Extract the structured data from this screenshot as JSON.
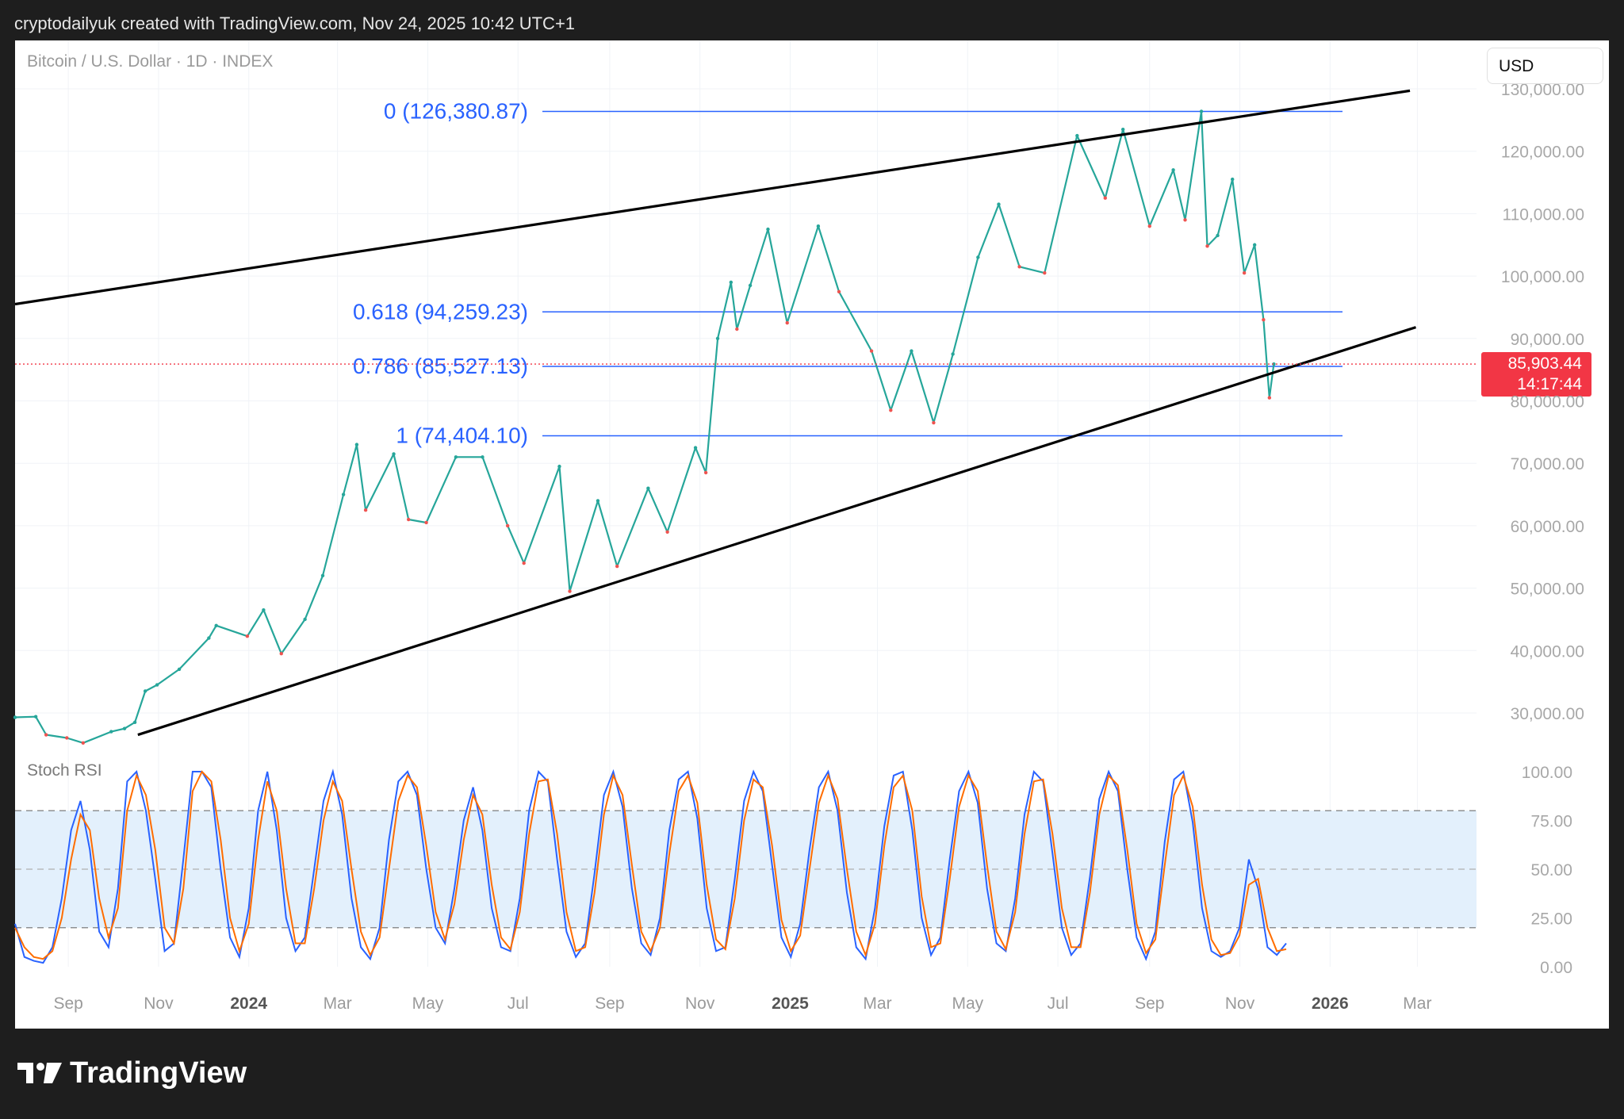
{
  "header": {
    "caption": "cryptodailyuk created with TradingView.com, Nov 24, 2025 10:42 UTC+1"
  },
  "chart": {
    "symbol": "Bitcoin / U.S. Dollar · 1D · INDEX",
    "currency": "USD",
    "price_label": "85,903.44",
    "timer_label": "14:17:44",
    "indicator_label": "Stoch RSI"
  },
  "branding": {
    "name": "TradingView"
  },
  "colors": {
    "up": "#26a69a",
    "down": "#ef5350",
    "fib": "#2962ff",
    "trendline": "#000000",
    "price_line": "#f23645",
    "k_line": "#2962ff",
    "d_line": "#ff6d00",
    "band_fill": "#e3f0fc"
  },
  "chart_data": [
    {
      "type": "line",
      "title": "Bitcoin / U.S. Dollar · 1D · INDEX",
      "x_axis_ticks": [
        "Sep",
        "Nov",
        "2024",
        "Mar",
        "May",
        "Jul",
        "Sep",
        "Nov",
        "2025",
        "Mar",
        "May",
        "Jul",
        "Sep",
        "Nov",
        "2026",
        "Mar"
      ],
      "y_axis_ticks": [
        "130,000.00",
        "120,000.00",
        "110,000.00",
        "100,000.00",
        "90,000.00",
        "80,000.00",
        "70,000.00",
        "60,000.00",
        "50,000.00",
        "40,000.00",
        "30,000.00"
      ],
      "ylim": [
        22000,
        133000
      ],
      "xlim": [
        "2023-07-27",
        "2026-04-10"
      ],
      "series": [
        {
          "values": [
            [
              "2023-07-27",
              29300
            ],
            [
              "2023-08-10",
              29400
            ],
            [
              "2023-08-17",
              26500
            ],
            [
              "2023-08-31",
              26000
            ],
            [
              "2023-09-11",
              25200
            ],
            [
              "2023-09-30",
              27000
            ],
            [
              "2023-10-09",
              27500
            ],
            [
              "2023-10-16",
              28500
            ],
            [
              "2023-10-23",
              33500
            ],
            [
              "2023-10-31",
              34500
            ],
            [
              "2023-11-15",
              37000
            ],
            [
              "2023-12-05",
              42000
            ],
            [
              "2023-12-10",
              44000
            ],
            [
              "2023-12-31",
              42300
            ],
            [
              "2024-01-11",
              46500
            ],
            [
              "2024-01-23",
              39500
            ],
            [
              "2024-02-08",
              45000
            ],
            [
              "2024-02-20",
              52000
            ],
            [
              "2024-03-05",
              65000
            ],
            [
              "2024-03-14",
              73000
            ],
            [
              "2024-03-20",
              62500
            ],
            [
              "2024-04-08",
              71500
            ],
            [
              "2024-04-18",
              61000
            ],
            [
              "2024-04-30",
              60500
            ],
            [
              "2024-05-20",
              71000
            ],
            [
              "2024-06-07",
              71000
            ],
            [
              "2024-06-24",
              60000
            ],
            [
              "2024-07-05",
              54000
            ],
            [
              "2024-07-29",
              69500
            ],
            [
              "2024-08-05",
              49500
            ],
            [
              "2024-08-24",
              64000
            ],
            [
              "2024-09-06",
              53500
            ],
            [
              "2024-09-27",
              66000
            ],
            [
              "2024-10-10",
              59000
            ],
            [
              "2024-10-29",
              72500
            ],
            [
              "2024-11-05",
              68500
            ],
            [
              "2024-11-13",
              90000
            ],
            [
              "2024-11-22",
              99000
            ],
            [
              "2024-11-26",
              91500
            ],
            [
              "2024-12-05",
              98500
            ],
            [
              "2024-12-17",
              107500
            ],
            [
              "2024-12-30",
              92500
            ],
            [
              "2025-01-20",
              108000
            ],
            [
              "2025-02-03",
              97500
            ],
            [
              "2025-02-25",
              88000
            ],
            [
              "2025-03-10",
              78500
            ],
            [
              "2025-03-24",
              88000
            ],
            [
              "2025-04-08",
              76500
            ],
            [
              "2025-04-21",
              87500
            ],
            [
              "2025-05-08",
              103000
            ],
            [
              "2025-05-22",
              111500
            ],
            [
              "2025-06-05",
              101500
            ],
            [
              "2025-06-22",
              100500
            ],
            [
              "2025-07-14",
              122500
            ],
            [
              "2025-08-02",
              112500
            ],
            [
              "2025-08-14",
              123500
            ],
            [
              "2025-09-01",
              108000
            ],
            [
              "2025-09-17",
              117000
            ],
            [
              "2025-09-25",
              109000
            ],
            [
              "2025-10-06",
              126380
            ],
            [
              "2025-10-10",
              104800
            ],
            [
              "2025-10-17",
              106500
            ],
            [
              "2025-10-27",
              115500
            ],
            [
              "2025-11-04",
              100500
            ],
            [
              "2025-11-11",
              105000
            ],
            [
              "2025-11-17",
              93000
            ],
            [
              "2025-11-21",
              80500
            ],
            [
              "2025-11-24",
              85903
            ]
          ]
        }
      ],
      "fibonacci_levels": [
        {
          "label": "0 (126,380.87)",
          "ratio": 0,
          "value": 126380.87
        },
        {
          "label": "0.618 (94,259.23)",
          "ratio": 0.618,
          "value": 94259.23
        },
        {
          "label": "0.786 (85,527.13)",
          "ratio": 0.786,
          "value": 85527.13
        },
        {
          "label": "1 (74,404.10)",
          "ratio": 1,
          "value": 74404.1
        }
      ],
      "trendlines": [
        {
          "name": "upper channel",
          "from": [
            "2023-07-27",
            95500
          ],
          "to": [
            "2026-02-24",
            129700
          ]
        },
        {
          "name": "lower channel",
          "from": [
            "2023-10-18",
            26500
          ],
          "to": [
            "2026-02-28",
            91800
          ]
        }
      ],
      "last_price": {
        "value": 85903.44,
        "timer": "14:17:44"
      }
    },
    {
      "type": "line",
      "title": "Stoch RSI",
      "y_axis_ticks": [
        "100.00",
        "75.00",
        "50.00",
        "25.00",
        "0.00"
      ],
      "ylim": [
        0,
        100
      ],
      "bands": {
        "upper": 80,
        "middle": 50,
        "lower": 20
      },
      "series": [
        {
          "name": "K",
          "values": [
            22,
            5,
            3,
            2,
            10,
            35,
            70,
            85,
            60,
            18,
            10,
            40,
            95,
            100,
            80,
            45,
            8,
            12,
            55,
            100,
            100,
            92,
            50,
            15,
            5,
            30,
            80,
            100,
            70,
            25,
            8,
            15,
            50,
            85,
            100,
            78,
            35,
            10,
            4,
            20,
            65,
            95,
            100,
            88,
            50,
            20,
            12,
            40,
            75,
            92,
            70,
            30,
            10,
            8,
            35,
            80,
            100,
            95,
            55,
            18,
            5,
            12,
            48,
            88,
            100,
            82,
            40,
            12,
            6,
            25,
            70,
            96,
            100,
            76,
            30,
            8,
            10,
            45,
            85,
            100,
            90,
            52,
            15,
            5,
            22,
            60,
            92,
            100,
            80,
            38,
            10,
            4,
            30,
            72,
            98,
            100,
            70,
            25,
            6,
            15,
            55,
            90,
            100,
            84,
            40,
            12,
            8,
            35,
            78,
            100,
            95,
            58,
            20,
            6,
            12,
            46,
            86,
            100,
            90,
            50,
            15,
            4,
            18,
            64,
            96,
            100,
            74,
            30,
            8,
            5,
            8,
            20,
            55,
            40,
            10,
            6,
            12
          ]
        },
        {
          "name": "D",
          "values": [
            20,
            10,
            5,
            4,
            8,
            25,
            55,
            78,
            70,
            35,
            15,
            30,
            80,
            98,
            88,
            60,
            20,
            12,
            40,
            90,
            100,
            95,
            65,
            25,
            8,
            22,
            65,
            95,
            80,
            40,
            12,
            12,
            40,
            75,
            95,
            85,
            50,
            18,
            6,
            15,
            50,
            85,
            98,
            92,
            62,
            28,
            14,
            32,
            65,
            88,
            78,
            42,
            15,
            9,
            28,
            68,
            95,
            96,
            68,
            28,
            8,
            10,
            38,
            78,
            98,
            88,
            52,
            18,
            8,
            20,
            58,
            90,
            98,
            84,
            42,
            14,
            9,
            35,
            75,
            96,
            92,
            62,
            24,
            8,
            16,
            50,
            84,
            98,
            86,
            50,
            18,
            6,
            22,
            62,
            92,
            98,
            80,
            36,
            10,
            12,
            45,
            82,
            98,
            90,
            52,
            18,
            9,
            28,
            68,
            95,
            96,
            68,
            30,
            10,
            10,
            38,
            78,
            98,
            93,
            60,
            22,
            7,
            14,
            52,
            88,
            98,
            82,
            42,
            14,
            6,
            7,
            16,
            42,
            45,
            20,
            8,
            9
          ]
        }
      ]
    }
  ]
}
